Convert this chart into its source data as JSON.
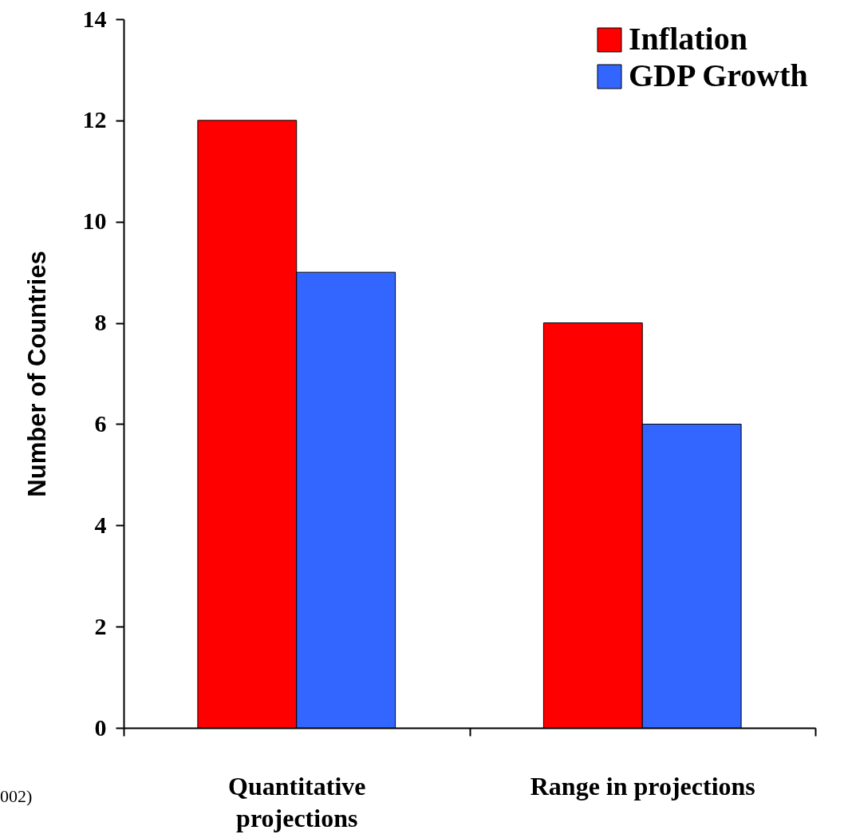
{
  "chart_data": {
    "type": "bar",
    "ylabel": "Number of Countries",
    "categories": [
      "Quantitative projections",
      "Range in projections"
    ],
    "series": [
      {
        "name": "Inflation",
        "color": "#ff0000",
        "values": [
          12,
          8
        ]
      },
      {
        "name": "GDP Growth",
        "color": "#3366ff",
        "values": [
          9,
          6
        ]
      }
    ],
    "ylim": [
      0,
      14
    ],
    "yticks": [
      0,
      2,
      4,
      6,
      8,
      10,
      12,
      14
    ],
    "grid": false,
    "legend": "top right",
    "annotations": [
      "002)"
    ]
  }
}
